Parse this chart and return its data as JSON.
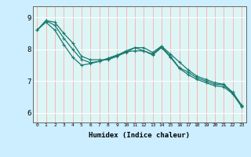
{
  "title": "",
  "xlabel": "Humidex (Indice chaleur)",
  "background_color": "#cceeff",
  "plot_bg_color": "#ddf5f5",
  "line_color": "#1a7a6e",
  "grid_color_v": "#ffaaaa",
  "grid_color_h": "#ffffff",
  "ylim": [
    5.7,
    9.35
  ],
  "xlim": [
    -0.5,
    23.5
  ],
  "yticks": [
    6,
    7,
    8,
    9
  ],
  "xticks": [
    0,
    1,
    2,
    3,
    4,
    5,
    6,
    7,
    8,
    9,
    10,
    11,
    12,
    13,
    14,
    15,
    16,
    17,
    18,
    19,
    20,
    21,
    22,
    23
  ],
  "line1": [
    8.6,
    8.9,
    8.85,
    8.5,
    8.2,
    7.78,
    7.67,
    7.67,
    7.67,
    7.78,
    7.9,
    8.05,
    8.05,
    7.9,
    8.1,
    7.85,
    7.6,
    7.35,
    7.15,
    7.05,
    6.95,
    6.9,
    6.65,
    6.25
  ],
  "line2": [
    8.6,
    8.9,
    8.75,
    8.35,
    8.0,
    7.68,
    7.58,
    7.62,
    7.72,
    7.82,
    7.92,
    7.95,
    7.95,
    7.82,
    8.05,
    7.75,
    7.4,
    7.2,
    7.05,
    6.95,
    6.85,
    6.82,
    6.6,
    6.2
  ],
  "line3": [
    8.6,
    8.85,
    8.6,
    8.15,
    7.75,
    7.5,
    7.55,
    7.62,
    7.7,
    7.8,
    7.95,
    8.05,
    7.95,
    7.85,
    8.08,
    7.78,
    7.42,
    7.28,
    7.1,
    7.0,
    6.9,
    6.88,
    6.62,
    6.22
  ]
}
